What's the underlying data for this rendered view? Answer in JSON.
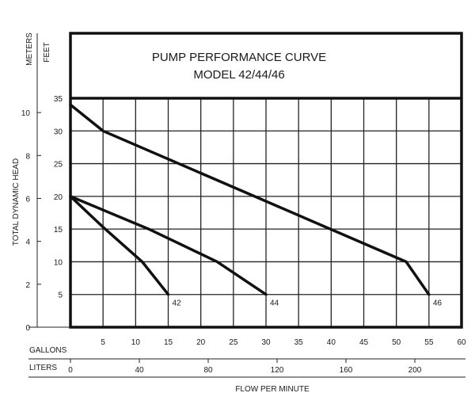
{
  "chart_data": {
    "type": "line",
    "title_lines": [
      "PUMP PERFORMANCE CURVE",
      "MODEL 42/44/46"
    ],
    "xlabel": "FLOW PER MINUTE",
    "ylabel": "TOTAL DYNAMIC HEAD",
    "units": {
      "y_primary": "FEET",
      "y_secondary": "METERS",
      "x_primary": "GALLONS",
      "x_secondary": "LITERS"
    },
    "xlim": [
      0,
      60
    ],
    "ylim": [
      0,
      35
    ],
    "x_ticks": [
      0,
      5,
      10,
      15,
      20,
      25,
      30,
      35,
      40,
      45,
      50,
      55,
      60
    ],
    "x_tick_labels": [
      "5",
      "10",
      "15",
      "20",
      "25",
      "30",
      "35",
      "40",
      "45",
      "50",
      "55",
      "60"
    ],
    "y_ticks": [
      5,
      10,
      15,
      20,
      25,
      30,
      35
    ],
    "y_tick_labels": [
      "5",
      "10",
      "15",
      "20",
      "25",
      "30",
      "35"
    ],
    "y_secondary_ticks": [
      "0",
      "2",
      "4",
      "6",
      "8",
      "10"
    ],
    "y_secondary_values": [
      0,
      2,
      4,
      6,
      8,
      10
    ],
    "x_secondary_ticks": [
      "0",
      "40",
      "80",
      "120",
      "160",
      "200"
    ],
    "x_secondary_values": [
      0,
      40,
      80,
      120,
      160,
      200
    ],
    "grid": true,
    "series": [
      {
        "name": "42",
        "x": [
          0,
          5,
          11,
          15
        ],
        "y": [
          20,
          15.3,
          10,
          5
        ]
      },
      {
        "name": "44",
        "x": [
          0,
          12,
          22.5,
          30
        ],
        "y": [
          20,
          15,
          10,
          5
        ]
      },
      {
        "name": "46",
        "x": [
          0,
          5,
          51.5,
          55
        ],
        "y": [
          34,
          30,
          10,
          5
        ]
      }
    ]
  }
}
